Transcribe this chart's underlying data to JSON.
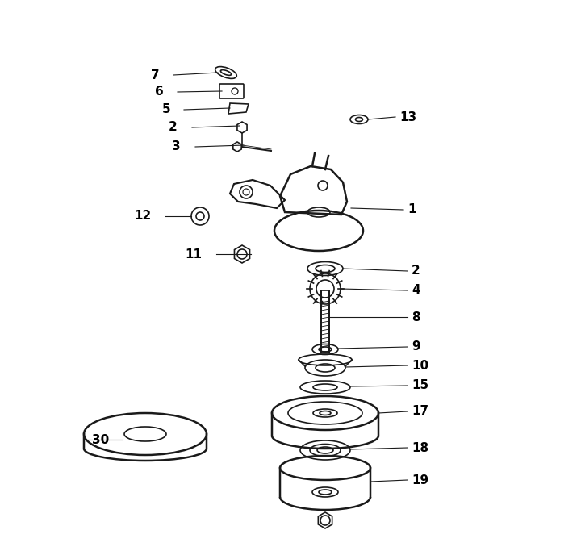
{
  "background_color": "#ffffff",
  "line_color": "#1a1a1a",
  "label_color": "#000000",
  "figsize": [
    7.2,
    6.83
  ],
  "dpi": 100
}
